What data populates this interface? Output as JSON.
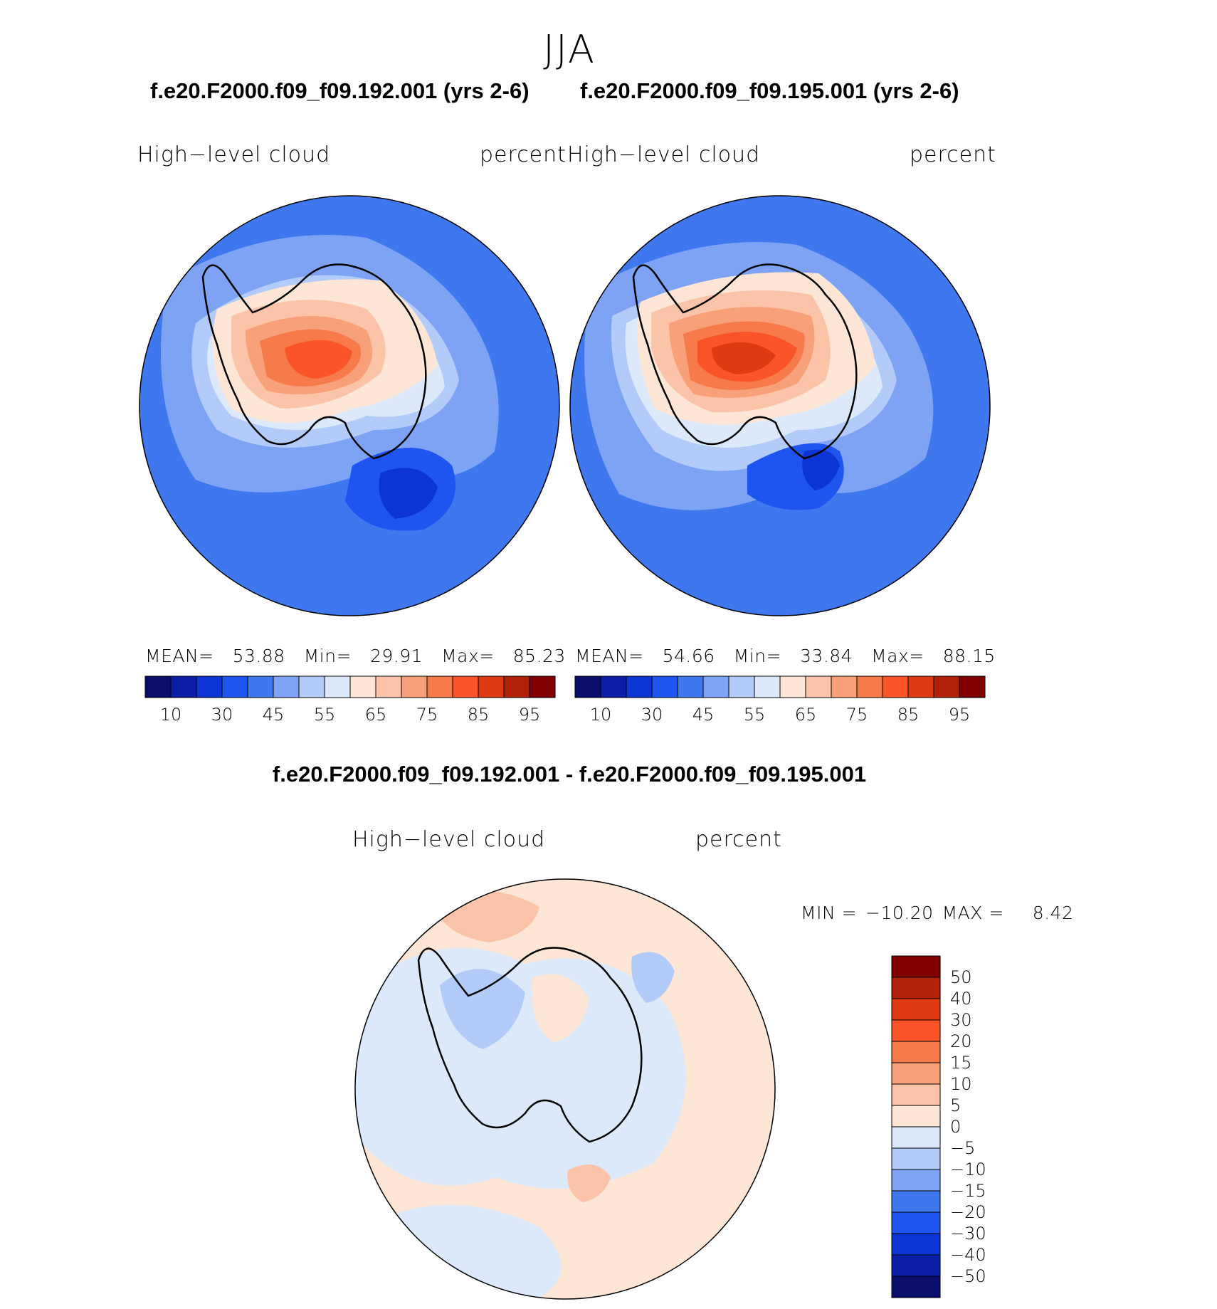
{
  "season": "JJA",
  "panels": [
    {
      "case": "f.e20.F2000.f09_f09.192.001 (yrs 2-6)",
      "variable": "High−level  cloud",
      "units": "percent",
      "mean_label": "MEAN=",
      "mean": "53.88",
      "min_label": "Min=",
      "min": "29.91",
      "max_label": "Max=",
      "max": "85.23"
    },
    {
      "case": "f.e20.F2000.f09_f09.195.001 (yrs 2-6)",
      "variable": "High−level  cloud",
      "units": "percent",
      "mean_label": "MEAN=",
      "mean": "54.66",
      "min_label": "Min=",
      "min": "33.84",
      "max_label": "Max=",
      "max": "88.15"
    }
  ],
  "colorbar": {
    "colors": [
      "#0a0f6e",
      "#0b1ea8",
      "#0d34d4",
      "#1e55f0",
      "#3f78ee",
      "#7ea3f4",
      "#b3cbf8",
      "#dbe9fb",
      "#fde6d5",
      "#fbc4a8",
      "#f8a07a",
      "#f67a4a",
      "#fb5428",
      "#e03a12",
      "#b2210a",
      "#800000"
    ],
    "tick_labels": [
      "10",
      "30",
      "45",
      "55",
      "65",
      "75",
      "85",
      "95"
    ]
  },
  "difference": {
    "title": "f.e20.F2000.f09_f09.192.001 - f.e20.F2000.f09_f09.195.001",
    "variable": "High−level  cloud",
    "units": "percent",
    "min_label": "MIN =",
    "min": "−10.20",
    "max_label": "MAX =",
    "max": "8.42",
    "colorbar": {
      "colors": [
        "#800000",
        "#b2210a",
        "#e03a12",
        "#fb5428",
        "#f67a4a",
        "#f8a07a",
        "#fbc4a8",
        "#fde6d5",
        "#dbe9fb",
        "#b3cbf8",
        "#7ea3f4",
        "#3f78ee",
        "#1e55f0",
        "#0d34d4",
        "#0b1ea8",
        "#0a0f6e"
      ],
      "tick_labels": [
        "50",
        "40",
        "30",
        "20",
        "15",
        "10",
        "5",
        "0",
        "−5",
        "−10",
        "−15",
        "−20",
        "−30",
        "−40",
        "−50"
      ]
    }
  }
}
